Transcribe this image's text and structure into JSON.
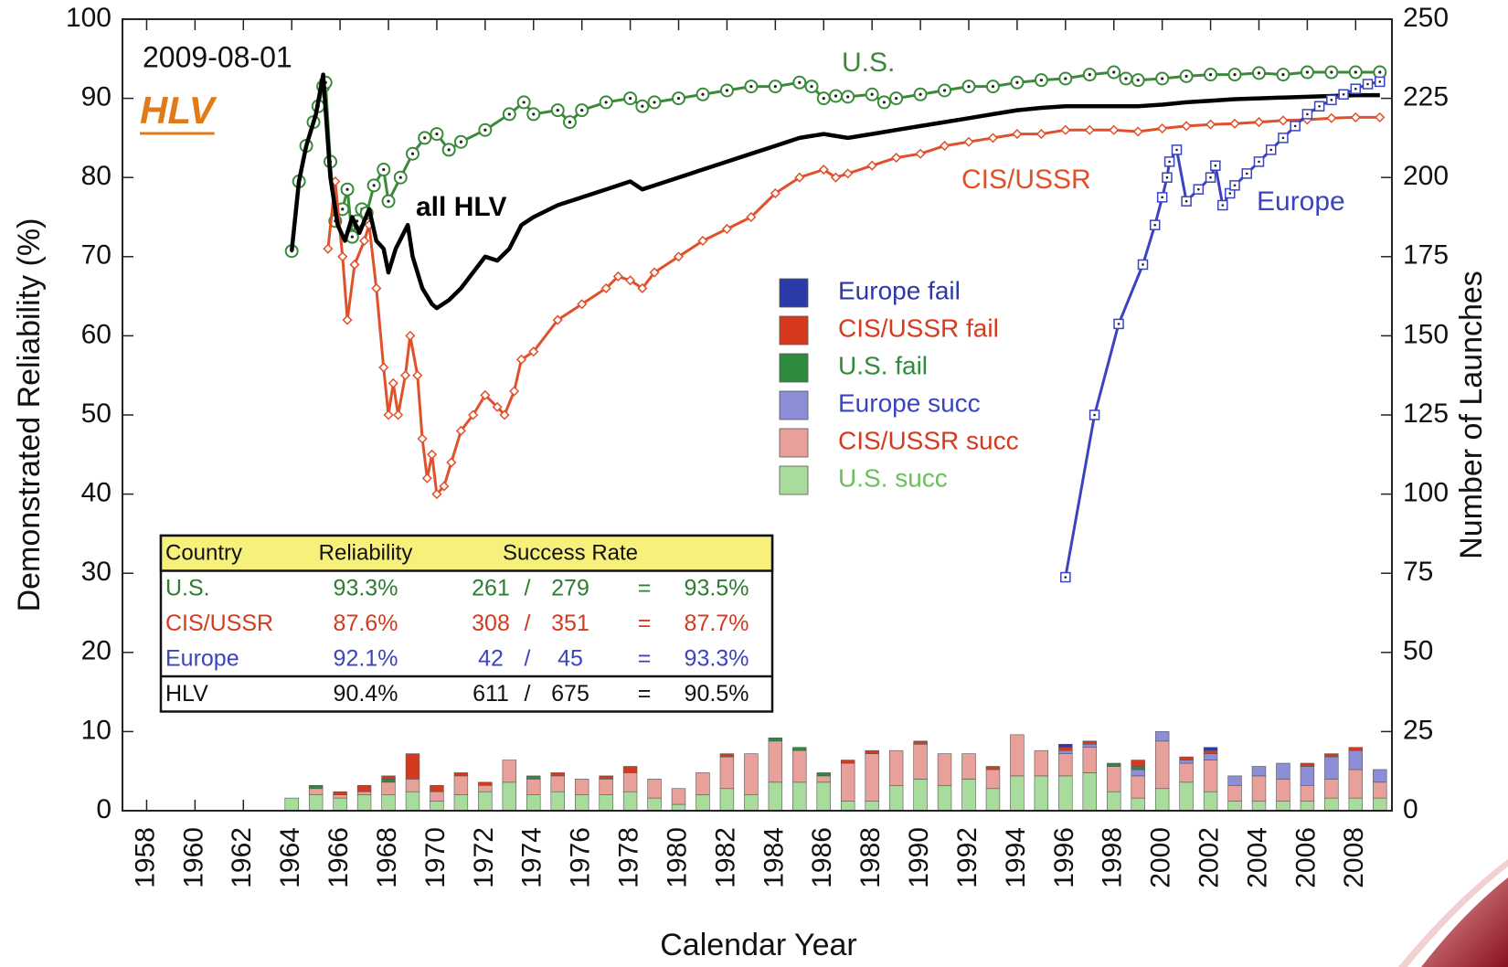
{
  "chart_data": {
    "type": "line",
    "x_label": "Calendar Year",
    "y_label": "Demonstrated Reliability (%)",
    "y2_label": "Number of Launches",
    "xlim": [
      1957,
      2009.5
    ],
    "xticks": [
      1958,
      1960,
      1962,
      1964,
      1966,
      1968,
      1970,
      1972,
      1974,
      1976,
      1978,
      1980,
      1982,
      1984,
      1986,
      1988,
      1990,
      1992,
      1994,
      1996,
      1998,
      2000,
      2002,
      2004,
      2006,
      2008
    ],
    "ylim": [
      0,
      100
    ],
    "yticks": [
      0,
      10,
      20,
      30,
      40,
      50,
      60,
      70,
      80,
      90,
      100
    ],
    "y2lim": [
      0,
      250
    ],
    "y2ticks": [
      0,
      25,
      50,
      75,
      100,
      125,
      150,
      175,
      200,
      225,
      250
    ],
    "categories": [
      1964,
      1965,
      1966,
      1967,
      1968,
      1969,
      1970,
      1971,
      1972,
      1973,
      1974,
      1975,
      1976,
      1977,
      1978,
      1979,
      1980,
      1981,
      1982,
      1983,
      1984,
      1985,
      1986,
      1987,
      1988,
      1989,
      1990,
      1991,
      1992,
      1993,
      1994,
      1995,
      1996,
      1997,
      1998,
      1999,
      2000,
      2001,
      2002,
      2003,
      2004,
      2005,
      2006,
      2007,
      2008,
      2009
    ],
    "series": [
      {
        "name": "U.S.",
        "type": "line",
        "marker": "circle",
        "color": "#3a8a3a",
        "x": [
          1964,
          1964.3,
          1964.6,
          1964.9,
          1965.1,
          1965.3,
          1965.4,
          1965.6,
          1965.8,
          1966.1,
          1966.3,
          1966.5,
          1966.7,
          1966.9,
          1967.1,
          1967.4,
          1967.8,
          1968,
          1968.5,
          1969,
          1969.5,
          1970,
          1970.5,
          1971,
          1972,
          1973,
          1973.6,
          1974,
          1975,
          1975.5,
          1976,
          1977,
          1978,
          1978.5,
          1979,
          1980,
          1981,
          1982,
          1983,
          1984,
          1985,
          1985.5,
          1986,
          1986.5,
          1987,
          1988,
          1988.5,
          1989,
          1990,
          1991,
          1992,
          1993,
          1994,
          1995,
          1996,
          1997,
          1998,
          1998.5,
          1999,
          2000,
          2001,
          2002,
          2003,
          2004,
          2005,
          2006,
          2007,
          2008,
          2009
        ],
        "values": [
          70.7,
          79.5,
          84,
          87,
          89,
          91.5,
          92,
          82,
          74.5,
          76,
          78.5,
          72.5,
          74.5,
          76,
          75.5,
          79,
          81,
          77,
          80,
          83,
          85,
          85.5,
          83.5,
          84.5,
          86,
          88,
          89.5,
          88,
          88.5,
          87,
          88.5,
          89.5,
          90,
          89,
          89.5,
          90,
          90.5,
          91,
          91.5,
          91.5,
          92,
          91.5,
          90,
          90.3,
          90.2,
          90.5,
          89.5,
          90,
          90.5,
          91,
          91.5,
          91.5,
          92,
          92.3,
          92.5,
          93,
          93.3,
          92.5,
          92.3,
          92.5,
          92.8,
          93,
          93,
          93.2,
          93,
          93.3,
          93.3,
          93.3,
          93.3
        ]
      },
      {
        "name": "CIS/USSR",
        "type": "line",
        "marker": "diamond",
        "color": "#e0502a",
        "x": [
          1965.5,
          1965.8,
          1966.1,
          1966.3,
          1966.6,
          1967,
          1967.2,
          1967.5,
          1967.8,
          1968,
          1968.2,
          1968.4,
          1968.7,
          1968.9,
          1969.2,
          1969.4,
          1969.6,
          1969.8,
          1970,
          1970.3,
          1970.6,
          1971,
          1971.5,
          1972,
          1972.5,
          1972.8,
          1973.2,
          1973.5,
          1974,
          1975,
          1976,
          1977,
          1977.5,
          1978,
          1978.5,
          1979,
          1980,
          1981,
          1982,
          1983,
          1984,
          1985,
          1986,
          1986.5,
          1987,
          1988,
          1989,
          1990,
          1991,
          1992,
          1993,
          1994,
          1995,
          1996,
          1997,
          1998,
          1999,
          2000,
          2001,
          2002,
          2003,
          2004,
          2005,
          2006,
          2007,
          2008,
          2009
        ],
        "values": [
          71,
          79.5,
          70,
          62,
          69,
          72,
          74,
          66,
          56,
          50,
          54,
          50,
          55,
          60,
          55,
          47,
          42,
          45,
          40,
          41,
          44,
          48,
          50,
          52.5,
          51,
          50,
          53,
          57,
          58,
          62,
          64,
          66,
          67.5,
          67,
          66,
          68,
          70,
          72,
          73.5,
          75,
          78,
          80,
          81,
          80,
          80.5,
          81.5,
          82.5,
          83,
          84,
          84.5,
          85,
          85.5,
          85.5,
          86,
          86,
          86,
          85.8,
          86.2,
          86.5,
          86.7,
          86.8,
          87,
          87.2,
          87.3,
          87.5,
          87.6,
          87.6
        ]
      },
      {
        "name": "all HLV",
        "type": "line",
        "marker": "none",
        "color": "#000000",
        "x": [
          1964,
          1964.3,
          1964.6,
          1965,
          1965.3,
          1965.6,
          1965.9,
          1966.2,
          1966.5,
          1966.8,
          1967.2,
          1967.5,
          1967.8,
          1968,
          1968.3,
          1968.8,
          1969,
          1969.4,
          1969.8,
          1970,
          1970.5,
          1971,
          1971.5,
          1972,
          1972.5,
          1973,
          1973.5,
          1974,
          1975,
          1976,
          1977,
          1978,
          1978.5,
          1979,
          1980,
          1981,
          1982,
          1983,
          1984,
          1985,
          1986,
          1987,
          1988,
          1989,
          1990,
          1991,
          1992,
          1993,
          1994,
          1995,
          1996,
          1997,
          1998,
          1999,
          2000,
          2001,
          2002,
          2003,
          2004,
          2005,
          2006,
          2007,
          2008,
          2009
        ],
        "values": [
          70.7,
          79.5,
          84,
          88,
          93,
          80,
          74,
          72,
          75,
          73,
          76,
          72,
          71,
          68,
          71,
          74,
          70,
          66,
          64,
          63.5,
          64.5,
          66,
          68,
          70,
          69.5,
          71,
          74,
          75,
          76.5,
          77.5,
          78.5,
          79.5,
          78.5,
          79,
          80,
          81,
          82,
          83,
          84,
          85,
          85.5,
          85,
          85.5,
          86,
          86.5,
          87,
          87.5,
          88,
          88.5,
          88.8,
          89,
          89,
          89,
          89,
          89.2,
          89.5,
          89.7,
          89.9,
          90,
          90.1,
          90.2,
          90.3,
          90.4,
          90.4
        ]
      },
      {
        "name": "Europe",
        "type": "line",
        "marker": "square",
        "color": "#3a44c0",
        "x": [
          1996,
          1997.2,
          1998.2,
          1999.2,
          1999.7,
          2000,
          2000.2,
          2000.3,
          2000.6,
          2001,
          2001.5,
          2002,
          2002.2,
          2002.5,
          2002.8,
          2003,
          2003.5,
          2004,
          2004.5,
          2005,
          2005.5,
          2006,
          2006.5,
          2007,
          2007.5,
          2008,
          2008.5,
          2009
        ],
        "values": [
          29.5,
          50,
          61.5,
          69,
          74,
          77.5,
          80,
          82,
          83.5,
          77,
          78.5,
          80,
          81.5,
          76.5,
          78,
          79,
          80.5,
          82,
          83.5,
          85,
          86.5,
          88,
          89,
          89.8,
          90.5,
          91.2,
          91.8,
          92.1
        ]
      },
      {
        "name": "U.S. succ",
        "type": "bar",
        "axis": "y2",
        "color": "#a8dc9c",
        "values": [
          4,
          5,
          4,
          5,
          5,
          6,
          3,
          5,
          6,
          9,
          5,
          6,
          5,
          5,
          6,
          4,
          2,
          5,
          7,
          5,
          9,
          9,
          9,
          3,
          3,
          8,
          10,
          8,
          10,
          7,
          11,
          11,
          11,
          12,
          6,
          4,
          7,
          9,
          6,
          3,
          3,
          3,
          3,
          4,
          4,
          4
        ]
      },
      {
        "name": "CIS/USSR succ",
        "type": "bar",
        "axis": "y2",
        "color": "#e8a09a",
        "values": [
          0,
          2,
          1,
          1,
          4,
          4,
          3,
          6,
          2,
          7,
          5,
          5,
          5,
          5,
          6,
          6,
          5,
          7,
          10,
          13,
          13,
          10,
          2,
          12,
          15,
          11,
          11,
          10,
          8,
          6,
          13,
          8,
          7,
          8,
          8,
          7,
          15,
          6,
          10,
          5,
          8,
          7,
          5,
          6,
          9,
          5
        ]
      },
      {
        "name": "Europe succ",
        "type": "bar",
        "axis": "y2",
        "color": "#8c8fd8",
        "values": [
          0,
          0,
          0,
          0,
          0,
          0,
          0,
          0,
          0,
          0,
          0,
          0,
          0,
          0,
          0,
          0,
          0,
          0,
          0,
          0,
          0,
          0,
          0,
          0,
          0,
          0,
          0,
          0,
          0,
          0,
          0,
          0,
          1,
          1,
          0,
          2,
          3,
          1,
          2,
          3,
          3,
          5,
          6,
          7,
          6,
          4
        ]
      },
      {
        "name": "U.S. fail",
        "type": "bar",
        "axis": "y2",
        "color": "#2e8b3e",
        "values": [
          0,
          1,
          0,
          0,
          1,
          0,
          0,
          0,
          0,
          0,
          1,
          0,
          0,
          0,
          0,
          0,
          0,
          0,
          0,
          0,
          1,
          1,
          1,
          0,
          0,
          0,
          0,
          0,
          0,
          0,
          0,
          0,
          0,
          0,
          1,
          1,
          0,
          0,
          0,
          0,
          0,
          0,
          0,
          0,
          0,
          0
        ]
      },
      {
        "name": "CIS/USSR fail",
        "type": "bar",
        "axis": "y2",
        "color": "#d63a1e",
        "values": [
          0,
          0,
          1,
          2,
          1,
          8,
          2,
          1,
          1,
          0,
          0,
          1,
          0,
          1,
          2,
          0,
          0,
          0,
          1,
          0,
          0,
          0,
          0,
          1,
          1,
          0,
          1,
          0,
          0,
          1,
          0,
          0,
          1,
          1,
          0,
          2,
          0,
          1,
          1,
          0,
          0,
          0,
          1,
          1,
          1,
          0
        ]
      },
      {
        "name": "Europe fail",
        "type": "bar",
        "axis": "y2",
        "color": "#2b3aa8",
        "values": [
          0,
          0,
          0,
          0,
          0,
          0,
          0,
          0,
          0,
          0,
          0,
          0,
          0,
          0,
          0,
          0,
          0,
          0,
          0,
          0,
          0,
          0,
          0,
          0,
          0,
          0,
          0,
          0,
          0,
          0,
          0,
          0,
          1,
          0,
          0,
          0,
          0,
          0,
          1,
          0,
          0,
          0,
          0,
          0,
          0,
          0
        ]
      }
    ],
    "annotations": [
      {
        "text": "2009-08-01",
        "color": "#111111"
      },
      {
        "text": "HLV",
        "color": "#e07b1a"
      },
      {
        "text": "U.S.",
        "color": "#3a8a3a"
      },
      {
        "text": "all HLV",
        "color": "#000000"
      },
      {
        "text": "CIS/USSR",
        "color": "#e0502a"
      },
      {
        "text": "Europe",
        "color": "#3a44c0"
      }
    ],
    "table": {
      "header": [
        "Country",
        "Reliability",
        "Success Rate"
      ],
      "rows": [
        {
          "color": "#2e7d32",
          "cells": [
            "U.S.",
            "93.3%",
            "261",
            "/",
            "279",
            "=",
            "93.5%"
          ]
        },
        {
          "color": "#d63a1e",
          "cells": [
            "CIS/USSR",
            "87.6%",
            "308",
            "/",
            "351",
            "=",
            "87.7%"
          ]
        },
        {
          "color": "#3a44c0",
          "cells": [
            "Europe",
            "92.1%",
            "42",
            "/",
            "45",
            "=",
            "93.3%"
          ]
        },
        {
          "color": "#111111",
          "cells": [
            "HLV",
            "90.4%",
            "611",
            "/",
            "675",
            "=",
            "90.5%"
          ]
        }
      ]
    }
  }
}
